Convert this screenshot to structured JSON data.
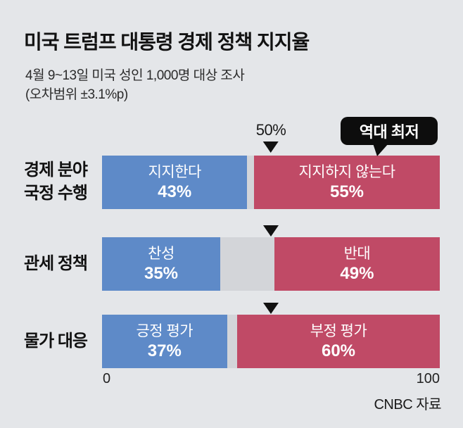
{
  "page": {
    "background": "#e4e6e9"
  },
  "header": {
    "title": "미국 트럼프 대통령 경제 정책 지지율",
    "subtitle_line1": "4월 9~13일 미국 성인 1,000명 대상 조사",
    "subtitle_line2": "(오차범위 ±3.1%p)"
  },
  "chart_data": {
    "type": "bar",
    "orientation": "horizontal-diverging-stacked",
    "title": "미국 트럼프 대통령 경제 정책 지지율",
    "subtitle": "4월 9~13일 미국 성인 1,000명 대상 조사 (오차범위 ±3.1%p)",
    "axis": {
      "min": 0,
      "max": 100,
      "tick_labels": [
        "0",
        "100"
      ],
      "midline_label": "50%"
    },
    "colors": {
      "positive": "#5e8ac8",
      "negative": "#c04a66",
      "undecided": "#d3d5d9",
      "callout_bg": "#0d0d0d",
      "background": "#e4e6e9"
    },
    "rows": [
      {
        "category": "경제 분야 국정 수행",
        "category_line1": "경제 분야",
        "category_line2": "국정 수행",
        "positive": {
          "label": "지지한다",
          "value": 43,
          "text": "43%"
        },
        "undecided": {
          "value": 2
        },
        "negative": {
          "label": "지지하지 않는다",
          "value": 55,
          "text": "55%"
        }
      },
      {
        "category": "관세 정책",
        "category_line1": "관세 정책",
        "positive": {
          "label": "찬성",
          "value": 35,
          "text": "35%"
        },
        "undecided": {
          "value": 16
        },
        "negative": {
          "label": "반대",
          "value": 49,
          "text": "49%"
        }
      },
      {
        "category": "물가 대응",
        "category_line1": "물가 대응",
        "positive": {
          "label": "긍정 평가",
          "value": 37,
          "text": "37%"
        },
        "undecided": {
          "value": 3
        },
        "negative": {
          "label": "부정 평가",
          "value": 60,
          "text": "60%"
        }
      }
    ],
    "annotation": {
      "label": "역대 최저"
    },
    "source": "CNBC 자료"
  }
}
